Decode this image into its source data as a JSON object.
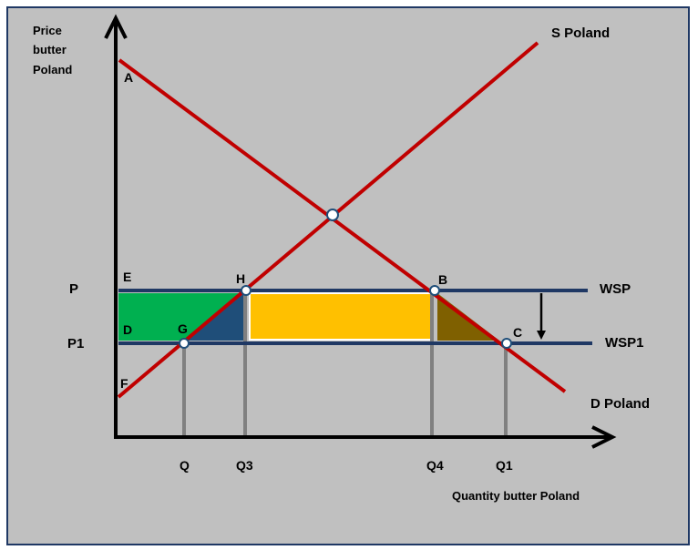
{
  "diagram": {
    "y_axis_label": [
      "Price",
      "butter",
      "Poland"
    ],
    "x_axis_label": "Quantity butter Poland",
    "supply_label": "S Poland",
    "demand_label": "D Poland",
    "world_price_labels": {
      "wsp": "WSP",
      "wsp1": "WSP1"
    },
    "price_labels": {
      "p": "P",
      "p1": "P1"
    },
    "quantity_labels": {
      "q": "Q",
      "q3": "Q3",
      "q4": "Q4",
      "q1": "Q1"
    },
    "point_labels": {
      "a": "A",
      "b": "B",
      "c": "C",
      "d": "D",
      "e": "E",
      "f": "F",
      "g": "G",
      "h": "H"
    },
    "colors": {
      "background": "#c0c0c0",
      "border": "#1f3864",
      "curve": "#c00000",
      "world_price_line": "#1f3864",
      "consumer_gain_area": "#00b050",
      "blue_triangle": "#1f4e79",
      "tariff_revenue_area": "#ffc000",
      "brown_triangle": "#7f6000",
      "drop_line": "#808080"
    }
  }
}
